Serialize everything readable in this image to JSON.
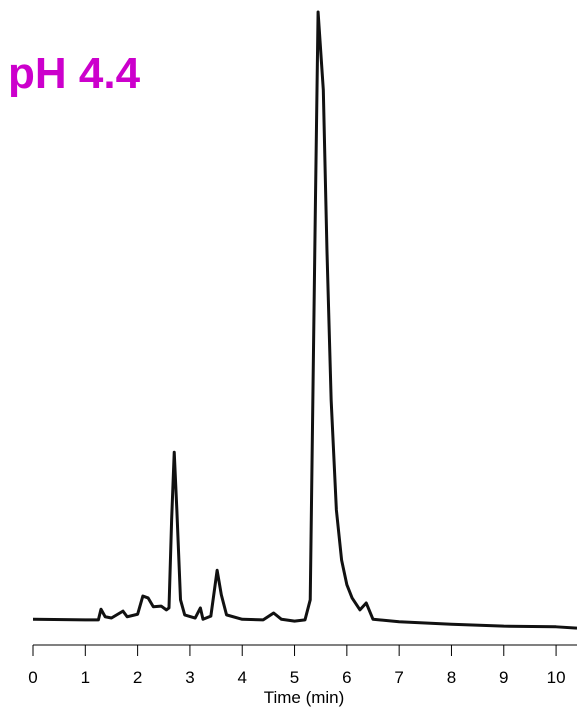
{
  "chart_data": {
    "type": "line",
    "title": "pH 4.4",
    "title_color": "#cc00cc",
    "x_label": "Time (min)",
    "color": "#111111",
    "x": [
      0,
      1.0,
      1.25,
      1.3,
      1.38,
      1.5,
      1.72,
      1.8,
      2.0,
      2.1,
      2.2,
      2.3,
      2.45,
      2.55,
      2.6,
      2.65,
      2.7,
      2.75,
      2.82,
      2.9,
      3.1,
      3.2,
      3.25,
      3.4,
      3.52,
      3.6,
      3.7,
      4.0,
      4.4,
      4.6,
      4.75,
      5.0,
      5.2,
      5.3,
      5.4,
      5.45,
      5.55,
      5.62,
      5.7,
      5.8,
      5.9,
      6.0,
      6.1,
      6.25,
      6.37,
      6.5,
      7.0,
      8.0,
      9.0,
      10.0,
      10.4
    ],
    "values": [
      3.3,
      3.2,
      3.2,
      4.9,
      3.7,
      3.5,
      4.6,
      3.7,
      4.1,
      7.0,
      6.7,
      5.3,
      5.4,
      4.8,
      5.1,
      19.1,
      29.9,
      20.7,
      6.4,
      4.0,
      3.5,
      5.1,
      3.3,
      3.8,
      11.1,
      7.2,
      4.0,
      3.3,
      3.2,
      4.3,
      3.3,
      3.0,
      3.2,
      6.4,
      70.0,
      100,
      87.6,
      62.0,
      38.2,
      20.7,
      12.7,
      8.8,
      6.7,
      4.8,
      5.9,
      3.3,
      2.9,
      2.5,
      2.2,
      2.1,
      1.9
    ],
    "xlim": [
      0,
      10.4
    ],
    "ylim": [
      0,
      100
    ],
    "xticks": [
      0,
      1,
      2,
      3,
      4,
      5,
      6,
      7,
      8,
      9,
      10
    ]
  }
}
